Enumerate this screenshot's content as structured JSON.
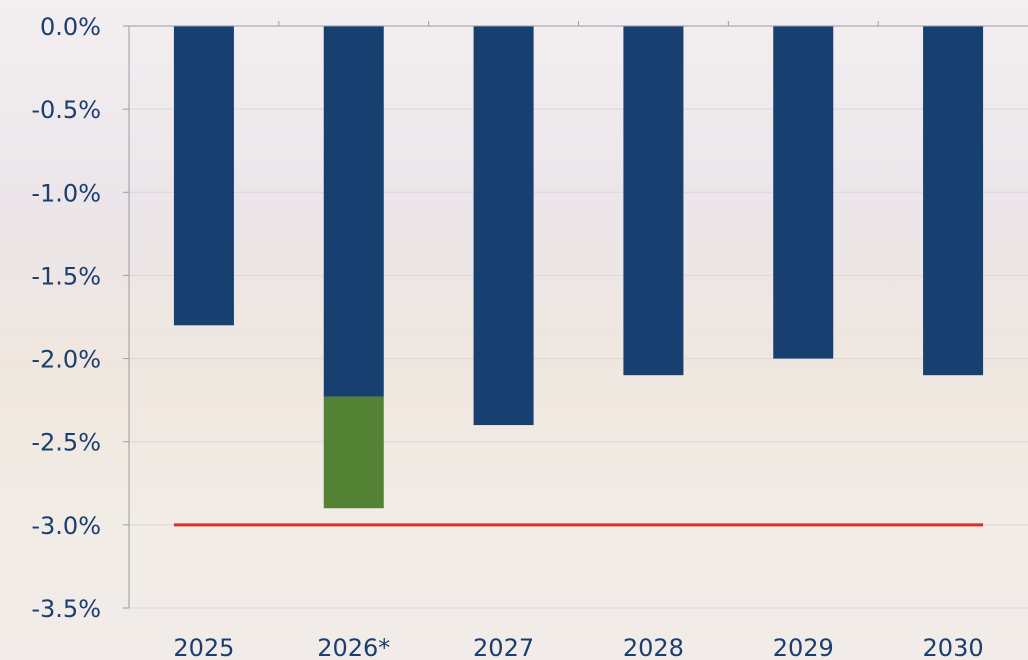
{
  "chart_data": {
    "type": "bar",
    "title": "",
    "xlabel": "",
    "ylabel": "",
    "categories": [
      "2025",
      "2026*",
      "2027",
      "2028",
      "2029",
      "2030"
    ],
    "series": [
      {
        "color": "#173f70",
        "values": [
          -1.8,
          -2.23,
          -2.4,
          -2.1,
          -2.0,
          -2.1
        ]
      },
      {
        "color": "#548235",
        "values": [
          0,
          -0.67,
          0,
          0,
          0,
          0
        ]
      }
    ],
    "reference_line": {
      "value": -3.0,
      "color": "#d9302a"
    },
    "ylim": [
      -3.5,
      0.0
    ],
    "yticks": [
      "0.0%",
      "-0.5%",
      "-1.0%",
      "-1.5%",
      "-2.0%",
      "-2.5%",
      "-3.0%",
      "-3.5%"
    ],
    "ytick_values": [
      0.0,
      -0.5,
      -1.0,
      -1.5,
      -2.0,
      -2.5,
      -3.0,
      -3.5
    ],
    "grid": true,
    "legend": "none",
    "stacked": true
  }
}
